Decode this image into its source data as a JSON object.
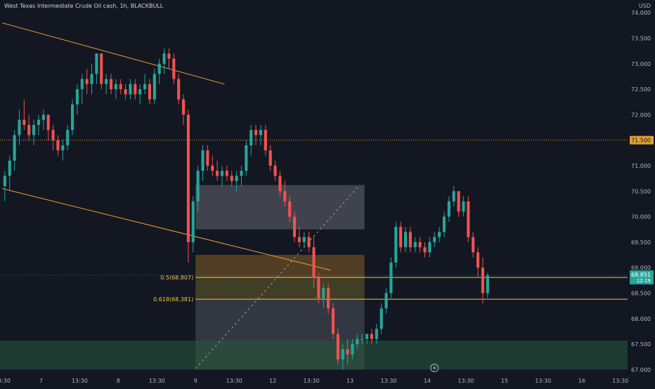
{
  "header": {
    "symbol": "West Texas Intermediate Crude Oil cash",
    "interval": "1h",
    "broker": "BLACKBULL",
    "sep": ", ",
    "currency": "USD"
  },
  "colors": {
    "bg": "#131722",
    "up": "#26a69a",
    "down": "#ef5350",
    "trendline": "#f0a033",
    "fib": "#f5c642",
    "level": "#e0a030",
    "price_badge": "#26a69a",
    "level_badge": "#e0a030"
  },
  "chart_data": {
    "type": "candlestick",
    "ylim": [
      66.95,
      74.25
    ],
    "x_domain": [
      0,
      130
    ],
    "y_ticks": [
      "74.000",
      "73.500",
      "73.000",
      "72.500",
      "72.000",
      "71.500",
      "71.000",
      "70.500",
      "70.000",
      "69.500",
      "69.000",
      "68.500",
      "68.000",
      "67.500",
      "67.000"
    ],
    "x_ticks": [
      {
        "x": 0.5,
        "label": "13:30"
      },
      {
        "x": 8.5,
        "label": "7"
      },
      {
        "x": 16.5,
        "label": "13:30"
      },
      {
        "x": 24.5,
        "label": "8"
      },
      {
        "x": 32.5,
        "label": "13:30"
      },
      {
        "x": 40.5,
        "label": "9"
      },
      {
        "x": 48.5,
        "label": "13:30"
      },
      {
        "x": 56.5,
        "label": "12"
      },
      {
        "x": 64.5,
        "label": "13:30"
      },
      {
        "x": 72.5,
        "label": "13"
      },
      {
        "x": 80.5,
        "label": "13:30"
      },
      {
        "x": 88.5,
        "label": "14"
      },
      {
        "x": 96.5,
        "label": "13:30"
      },
      {
        "x": 104.5,
        "label": "15"
      },
      {
        "x": 112.5,
        "label": "13:30"
      },
      {
        "x": 120.5,
        "label": "16"
      },
      {
        "x": 128.5,
        "label": "13:30"
      }
    ],
    "candles": [
      [
        70.6,
        70.9,
        70.3,
        70.8
      ],
      [
        70.8,
        71.2,
        70.5,
        71.1
      ],
      [
        71.1,
        71.7,
        70.9,
        71.6
      ],
      [
        71.6,
        72.1,
        71.4,
        71.9
      ],
      [
        71.9,
        72.3,
        71.7,
        71.8
      ],
      [
        71.8,
        72.0,
        71.5,
        71.6
      ],
      [
        71.6,
        71.9,
        71.4,
        71.8
      ],
      [
        71.8,
        72.0,
        71.6,
        71.9
      ],
      [
        71.9,
        72.1,
        71.7,
        72.0
      ],
      [
        72.0,
        72.0,
        71.5,
        71.7
      ],
      [
        71.7,
        71.8,
        71.3,
        71.5
      ],
      [
        71.5,
        71.6,
        71.2,
        71.3
      ],
      [
        71.3,
        71.5,
        71.1,
        71.4
      ],
      [
        71.4,
        71.8,
        71.3,
        71.7
      ],
      [
        71.7,
        72.3,
        71.6,
        72.2
      ],
      [
        72.2,
        72.6,
        72.0,
        72.5
      ],
      [
        72.5,
        72.8,
        72.2,
        72.7
      ],
      [
        72.7,
        72.9,
        72.4,
        72.6
      ],
      [
        72.6,
        73.0,
        72.4,
        72.8
      ],
      [
        72.8,
        73.2,
        72.6,
        73.2
      ],
      [
        73.2,
        73.2,
        72.5,
        72.6
      ],
      [
        72.6,
        72.8,
        72.4,
        72.7
      ],
      [
        72.7,
        72.8,
        72.4,
        72.5
      ],
      [
        72.5,
        72.7,
        72.3,
        72.6
      ],
      [
        72.6,
        72.7,
        72.4,
        72.5
      ],
      [
        72.5,
        72.6,
        72.3,
        72.4
      ],
      [
        72.4,
        72.7,
        72.3,
        72.6
      ],
      [
        72.6,
        72.7,
        72.3,
        72.4
      ],
      [
        72.4,
        72.6,
        72.2,
        72.5
      ],
      [
        72.5,
        72.8,
        72.4,
        72.6
      ],
      [
        72.6,
        72.7,
        72.2,
        72.3
      ],
      [
        72.3,
        72.9,
        72.2,
        72.8
      ],
      [
        72.8,
        73.1,
        72.6,
        73.0
      ],
      [
        73.0,
        73.3,
        72.8,
        73.2
      ],
      [
        73.2,
        73.3,
        72.9,
        73.1
      ],
      [
        73.1,
        73.2,
        72.6,
        72.7
      ],
      [
        72.7,
        72.8,
        72.2,
        72.3
      ],
      [
        72.3,
        72.4,
        71.8,
        72.0
      ],
      [
        72.0,
        72.1,
        69.1,
        69.5
      ],
      [
        69.5,
        70.4,
        69.3,
        70.3
      ],
      [
        70.3,
        71.0,
        70.1,
        70.9
      ],
      [
        70.9,
        71.4,
        70.7,
        71.3
      ],
      [
        71.3,
        71.4,
        70.9,
        71.0
      ],
      [
        71.0,
        71.2,
        70.8,
        70.9
      ],
      [
        70.9,
        71.1,
        70.7,
        70.8
      ],
      [
        70.8,
        71.0,
        70.6,
        70.9
      ],
      [
        70.9,
        71.0,
        70.7,
        70.8
      ],
      [
        70.8,
        70.9,
        70.6,
        70.7
      ],
      [
        70.7,
        70.9,
        70.5,
        70.8
      ],
      [
        70.8,
        71.0,
        70.6,
        70.9
      ],
      [
        70.9,
        71.5,
        70.8,
        71.4
      ],
      [
        71.4,
        71.8,
        71.2,
        71.7
      ],
      [
        71.7,
        71.8,
        71.4,
        71.6
      ],
      [
        71.6,
        71.8,
        71.4,
        71.7
      ],
      [
        71.7,
        71.8,
        71.2,
        71.3
      ],
      [
        71.3,
        71.4,
        70.9,
        71.0
      ],
      [
        71.0,
        71.1,
        70.7,
        70.8
      ],
      [
        70.8,
        70.9,
        70.4,
        70.5
      ],
      [
        70.5,
        70.7,
        70.2,
        70.3
      ],
      [
        70.3,
        70.4,
        69.9,
        70.0
      ],
      [
        70.0,
        70.1,
        69.5,
        69.6
      ],
      [
        69.6,
        69.8,
        69.4,
        69.5
      ],
      [
        69.5,
        69.7,
        69.4,
        69.6
      ],
      [
        69.6,
        69.7,
        69.3,
        69.4
      ],
      [
        69.4,
        69.6,
        68.6,
        68.8
      ],
      [
        68.8,
        68.9,
        68.3,
        68.4
      ],
      [
        68.4,
        68.7,
        68.2,
        68.6
      ],
      [
        68.6,
        68.7,
        68.1,
        68.2
      ],
      [
        68.2,
        68.3,
        67.6,
        67.7
      ],
      [
        67.7,
        67.8,
        67.1,
        67.2
      ],
      [
        67.2,
        67.5,
        67.0,
        67.4
      ],
      [
        67.4,
        67.6,
        67.1,
        67.3
      ],
      [
        67.3,
        67.6,
        67.2,
        67.5
      ],
      [
        67.5,
        67.7,
        67.4,
        67.6
      ],
      [
        67.6,
        67.7,
        67.5,
        67.6
      ],
      [
        67.6,
        67.7,
        67.5,
        67.7
      ],
      [
        67.7,
        67.8,
        67.5,
        67.6
      ],
      [
        67.6,
        67.9,
        67.5,
        67.8
      ],
      [
        67.8,
        68.3,
        67.7,
        68.2
      ],
      [
        68.2,
        68.6,
        68.1,
        68.5
      ],
      [
        68.5,
        69.2,
        68.4,
        69.1
      ],
      [
        69.1,
        69.9,
        69.0,
        69.8
      ],
      [
        69.8,
        69.9,
        69.3,
        69.4
      ],
      [
        69.4,
        69.8,
        69.3,
        69.7
      ],
      [
        69.7,
        69.8,
        69.3,
        69.4
      ],
      [
        69.4,
        69.6,
        69.3,
        69.5
      ],
      [
        69.5,
        69.6,
        69.3,
        69.4
      ],
      [
        69.4,
        69.5,
        69.2,
        69.3
      ],
      [
        69.3,
        69.6,
        69.2,
        69.5
      ],
      [
        69.5,
        69.7,
        69.4,
        69.6
      ],
      [
        69.6,
        69.8,
        69.5,
        69.7
      ],
      [
        69.7,
        70.1,
        69.6,
        70.0
      ],
      [
        70.0,
        70.4,
        69.9,
        70.3
      ],
      [
        70.3,
        70.6,
        70.2,
        70.5
      ],
      [
        70.5,
        70.5,
        70.0,
        70.1
      ],
      [
        70.1,
        70.4,
        70.0,
        70.3
      ],
      [
        70.3,
        70.4,
        69.5,
        69.6
      ],
      [
        69.6,
        69.7,
        69.2,
        69.3
      ],
      [
        69.3,
        69.4,
        68.8,
        69.0
      ],
      [
        69.0,
        69.2,
        68.3,
        68.5
      ],
      [
        68.5,
        68.9,
        68.4,
        68.85
      ]
    ],
    "candle_start_index": 1,
    "upper_trendline": [
      [
        0.5,
        73.8
      ],
      [
        46.5,
        72.6
      ]
    ],
    "lower_trendline": [
      [
        0.5,
        70.55
      ],
      [
        68.5,
        68.95
      ]
    ],
    "price_line": {
      "value": 68.851,
      "label": "68.851",
      "timer": "12:19"
    },
    "level_line": {
      "value": 71.5,
      "label": "71.500"
    },
    "fib_levels": [
      {
        "value": 68.807,
        "label": "0.5(68.807)"
      },
      {
        "value": 68.381,
        "label": "0.618(68.381)"
      }
    ],
    "zones": [
      {
        "name": "gray-upper",
        "x": [
          40.5,
          75.5
        ],
        "y": [
          69.75,
          70.62
        ],
        "color": "rgba(120,123,134,0.45)"
      },
      {
        "name": "orange-band",
        "x": [
          40.5,
          75.5
        ],
        "y": [
          68.807,
          69.25
        ],
        "color": "rgba(160,110,40,0.45)"
      },
      {
        "name": "olive-band",
        "x": [
          40.5,
          75.5
        ],
        "y": [
          68.381,
          68.807
        ],
        "color": "rgba(120,110,40,0.45)"
      },
      {
        "name": "gray-lower",
        "x": [
          40.5,
          75.5
        ],
        "y": [
          67.0,
          68.381
        ],
        "color": "rgba(120,123,134,0.32)"
      },
      {
        "name": "green-zone",
        "x": [
          -2,
          130
        ],
        "y": [
          67.0,
          67.57
        ],
        "color": "rgba(38,90,60,0.55)"
      }
    ],
    "dotted_projection": [
      [
        40.5,
        67.02
      ],
      [
        74.5,
        70.62
      ]
    ]
  }
}
